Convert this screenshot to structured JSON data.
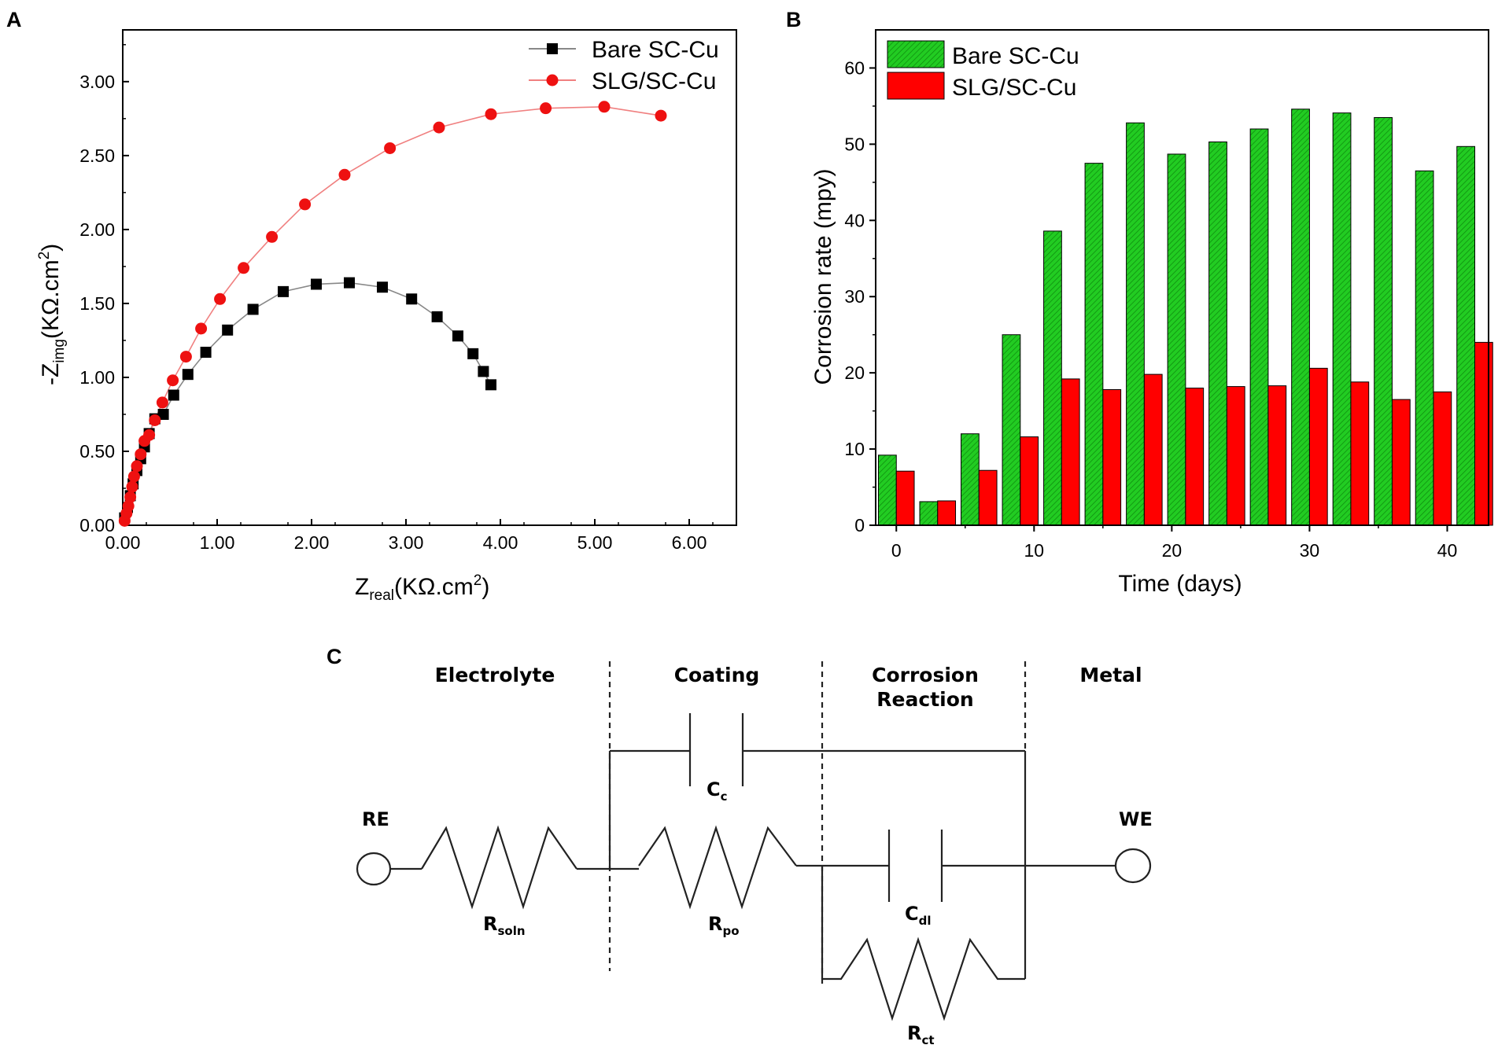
{
  "panels": {
    "a": "A",
    "b": "B",
    "c": "C"
  },
  "chart_data": [
    {
      "type": "scatter",
      "panel": "A",
      "xlabel_main": "Z",
      "xlabel_sub": "real",
      "xlabel_unit": "(KΩ.cm",
      "xlabel_sup": "2",
      "xlabel_close": ")",
      "ylabel_main": "-Z",
      "ylabel_sub": "img",
      "ylabel_unit": "(KΩ.cm",
      "ylabel_sup": "2",
      "ylabel_close": ")",
      "xlim": [
        0,
        6.5
      ],
      "ylim": [
        0,
        3.35
      ],
      "xticks": [
        "0.00",
        "1.00",
        "2.00",
        "3.00",
        "4.00",
        "5.00",
        "6.00"
      ],
      "yticks": [
        "0.00",
        "0.50",
        "1.00",
        "1.50",
        "2.00",
        "2.50",
        "3.00"
      ],
      "series": [
        {
          "name": "Bare SC-Cu",
          "color": "#000000",
          "line_color": "#888888",
          "marker": "square",
          "x": [
            0.02,
            0.05,
            0.08,
            0.11,
            0.15,
            0.19,
            0.23,
            0.28,
            0.34,
            0.43,
            0.54,
            0.69,
            0.88,
            1.11,
            1.38,
            1.7,
            2.05,
            2.4,
            2.75,
            3.06,
            3.33,
            3.55,
            3.71,
            3.82,
            3.9
          ],
          "y": [
            0.05,
            0.12,
            0.2,
            0.28,
            0.37,
            0.45,
            0.53,
            0.62,
            0.72,
            0.75,
            0.88,
            1.02,
            1.17,
            1.32,
            1.46,
            1.58,
            1.63,
            1.64,
            1.61,
            1.53,
            1.41,
            1.28,
            1.16,
            1.04,
            0.95
          ]
        },
        {
          "name": "SLG/SC-Cu",
          "color": "#ee1111",
          "line_color": "#f08080",
          "marker": "circle",
          "x": [
            0.02,
            0.04,
            0.06,
            0.08,
            0.1,
            0.12,
            0.15,
            0.19,
            0.23,
            0.28,
            0.34,
            0.42,
            0.53,
            0.67,
            0.83,
            1.03,
            1.28,
            1.58,
            1.93,
            2.35,
            2.83,
            3.35,
            3.9,
            4.48,
            5.1,
            5.7
          ],
          "y": [
            0.03,
            0.08,
            0.13,
            0.19,
            0.26,
            0.33,
            0.4,
            0.48,
            0.57,
            0.61,
            0.71,
            0.83,
            0.98,
            1.14,
            1.33,
            1.53,
            1.74,
            1.95,
            2.17,
            2.37,
            2.55,
            2.69,
            2.78,
            2.82,
            2.83,
            2.77
          ]
        }
      ]
    },
    {
      "type": "bar",
      "panel": "B",
      "title": "",
      "xlabel": "Time (days)",
      "ylabel": "Corrosion rate (mpy)",
      "xlim": [
        -1.5,
        43
      ],
      "ylim": [
        0,
        65
      ],
      "xticks": [
        0,
        10,
        20,
        30,
        40
      ],
      "yticks": [
        0,
        10,
        20,
        30,
        40,
        50,
        60
      ],
      "categories": [
        0,
        3,
        6,
        9,
        12,
        15,
        18,
        21,
        24,
        27,
        30,
        33,
        36,
        39,
        42
      ],
      "series": [
        {
          "name": "Bare SC-Cu",
          "color": "#22cc22",
          "pattern": "hatched",
          "values": [
            9.2,
            3.1,
            12.0,
            25.0,
            38.6,
            47.5,
            52.8,
            48.7,
            50.3,
            52.0,
            54.6,
            54.1,
            53.5,
            46.5,
            49.7
          ]
        },
        {
          "name": "SLG/SC-Cu",
          "color": "#ff0000",
          "values": [
            7.1,
            3.2,
            7.2,
            11.6,
            19.2,
            17.8,
            19.8,
            18.0,
            18.2,
            18.3,
            20.6,
            18.8,
            16.5,
            17.5,
            24.0
          ]
        }
      ]
    }
  ],
  "circuit": {
    "headers": [
      "Electrolyte",
      "Coating",
      "Corrosion",
      "Reaction",
      "Metal"
    ],
    "re": "RE",
    "we": "WE",
    "c_c": {
      "main": "C",
      "sub": "c"
    },
    "r_soln": {
      "main": "R",
      "sub": "soln"
    },
    "r_po": {
      "main": "R",
      "sub": "po"
    },
    "c_dl": {
      "main": "C",
      "sub": "dl"
    },
    "r_ct": {
      "main": "R",
      "sub": "ct"
    }
  }
}
